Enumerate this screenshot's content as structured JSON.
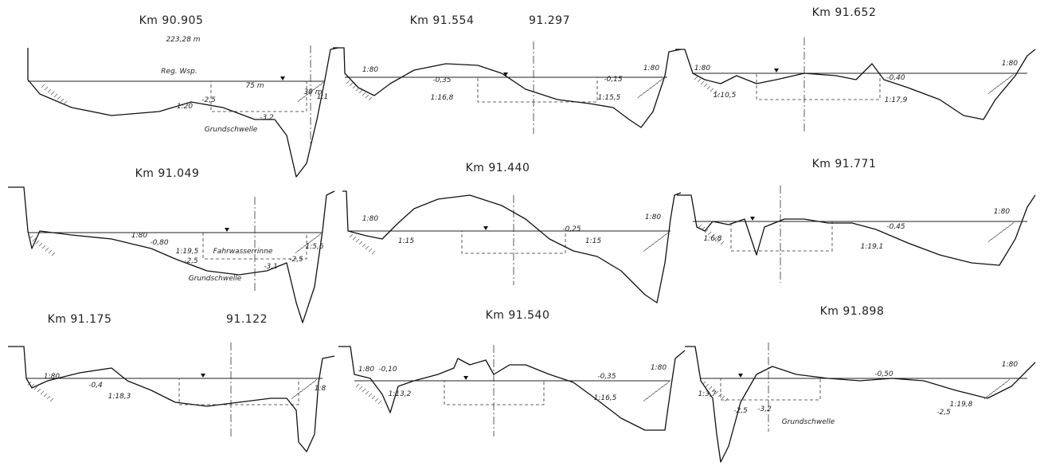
{
  "panels": [
    {
      "title": "Km 90.905",
      "labels": [
        "223,28 m",
        "Reg. Wsp.",
        "75 m",
        "30 m",
        "1:20",
        "-2,5",
        "-3,2",
        "Grundschwelle",
        "1:1"
      ]
    },
    {
      "title": "Km 91.554",
      "subtitle": "91.297",
      "labels": [
        "1:80",
        "-0,35",
        "1:16,8",
        "-0,15",
        "1:15,5",
        "1:80"
      ]
    },
    {
      "title": "Km 91.652",
      "labels": [
        "1:80",
        "1:10,5",
        "-0,40",
        "1:17,9",
        "1:80"
      ]
    },
    {
      "title": "Km 91.049",
      "labels": [
        "1:80",
        "-0,80",
        "1:19,5",
        "Fahrwasserrinne",
        "-2,5",
        "-3,1",
        "-2,5",
        "1:5,6",
        "Grundschwelle"
      ]
    },
    {
      "title": "Km 91.440",
      "labels": [
        "1:80",
        "1:15",
        "-0,25",
        "1:15",
        "1:80"
      ]
    },
    {
      "title": "Km 91.771",
      "labels": [
        "1:6,8",
        "-0,45",
        "1:19,1",
        "1:80"
      ]
    },
    {
      "title": "Km 91.175",
      "subtitle": "91.122",
      "labels": [
        "1:80",
        "-0,4",
        "1:18,3",
        "1:8"
      ]
    },
    {
      "title": "Km 91.540",
      "labels": [
        "1:80",
        "-0,10",
        "1:13,2",
        "-0,35",
        "1:16,5",
        "1:80"
      ]
    },
    {
      "title": "Km 91.898",
      "labels": [
        "1:3,7",
        "-2,5",
        "-3,2",
        "-0,50",
        "-2,5",
        "1:19,8",
        "1:80",
        "Grundschwelle"
      ]
    }
  ]
}
